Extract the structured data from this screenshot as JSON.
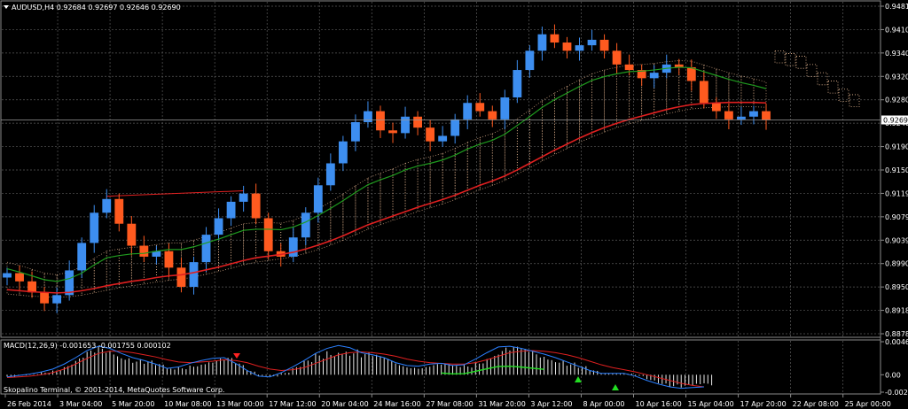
{
  "main_chart": {
    "symbol_line": "AUDUSD,H4  0.92684 0.92697 0.92646 0.92690",
    "price_axis_labels": [
      "0.94810",
      "0.94100",
      "0.93400",
      "0.93200",
      "0.92800",
      "0.92400",
      "0.91900",
      "0.91500",
      "0.91190",
      "0.90790",
      "0.90390",
      "0.89900",
      "0.89500",
      "0.89180",
      "0.88780"
    ],
    "current_price_tag": "0.92690",
    "time_axis_labels": [
      "26 Feb 2014",
      "3 Mar 04:00",
      "5 Mar 20:00",
      "10 Mar 08:00",
      "13 Mar 00:00",
      "17 Mar 12:00",
      "20 Mar 04:00",
      "24 Mar 16:00",
      "27 Mar 08:00",
      "31 Mar 20:00",
      "3 Apr 12:00",
      "8 Apr 00:00",
      "10 Apr 16:00",
      "15 Apr 04:00",
      "17 Apr 20:00",
      "22 Apr 08:00",
      "25 Apr 00:00"
    ],
    "colors": {
      "background": "#000000",
      "grid": "#5a5a5a",
      "bull_candle": "#3d8ef0",
      "bear_candle": "#ff5a1f",
      "ma_fast": "#1f9b1f",
      "ma_slow": "#e02020",
      "cloud": "#f4c29a",
      "trendline": "#e02020"
    }
  },
  "indicator": {
    "title": "MACD(12,26,9) -0.001653 -0.001755 0.000102",
    "axis_labels": [
      "0.004637",
      "0.00",
      "-0.002447"
    ],
    "copyright": "Skopalino Terminal, © 2001-2014, MetaQuotes Software Corp.",
    "colors": {
      "histogram": "#e8e8e8",
      "signal": "#e02020",
      "main": "#2a7fff",
      "arrow_up": "#22dd22",
      "arrow_down": "#ff2222"
    }
  },
  "chart_data": [
    {
      "type": "line",
      "title": "AUDUSD,H4",
      "x_start": "26 Feb 2014",
      "x_end": "25 Apr 00:00",
      "ylim": [
        0.8878,
        0.9481
      ],
      "last_price": 0.9269,
      "series": [
        {
          "values": [
            0.899,
            0.8975,
            0.8955,
            0.8935,
            0.895,
            0.8995,
            0.9045,
            0.91,
            0.9125,
            0.908,
            0.904,
            0.902,
            0.903,
            0.9,
            0.8965,
            0.901,
            0.906,
            0.909,
            0.912,
            0.9135,
            0.909,
            0.903,
            0.902,
            0.9055,
            0.91,
            0.915,
            0.919,
            0.923,
            0.9265,
            0.9285,
            0.925,
            0.9245,
            0.9275,
            0.9255,
            0.923,
            0.924,
            0.927,
            0.93,
            0.9285,
            0.927,
            0.931,
            0.936,
            0.9395,
            0.9425,
            0.941,
            0.9395,
            0.9405,
            0.9415,
            0.9395,
            0.937,
            0.936,
            0.9345,
            0.9355,
            0.937,
            0.9365,
            0.934,
            0.93,
            0.9285,
            0.927,
            0.9275,
            0.9285,
            0.9269
          ]
        },
        {
          "values": [
            0.8998,
            0.8992,
            0.8985,
            0.8978,
            0.8975,
            0.898,
            0.899,
            0.9005,
            0.9018,
            0.9022,
            0.9025,
            0.9026,
            0.903,
            0.9033,
            0.9033,
            0.9038,
            0.9045,
            0.9052,
            0.906,
            0.9068,
            0.907,
            0.907,
            0.9069,
            0.9074,
            0.9083,
            0.9095,
            0.9108,
            0.9122,
            0.9137,
            0.9151,
            0.916,
            0.9168,
            0.9178,
            0.9185,
            0.919,
            0.9196,
            0.9205,
            0.9216,
            0.9225,
            0.9232,
            0.9243,
            0.9259,
            0.9275,
            0.9292,
            0.9306,
            0.9318,
            0.933,
            0.9341,
            0.9348,
            0.9353,
            0.9357,
            0.9358,
            0.936,
            0.9363,
            0.9365,
            0.9364,
            0.9357,
            0.935,
            0.9343,
            0.9337,
            0.9332,
            0.9326
          ]
        },
        {
          "values": [
            0.896,
            0.8958,
            0.8956,
            0.8955,
            0.8954,
            0.8955,
            0.8958,
            0.8962,
            0.8967,
            0.8971,
            0.8975,
            0.8978,
            0.8982,
            0.8985,
            0.8987,
            0.8991,
            0.8996,
            0.9001,
            0.9007,
            0.9013,
            0.9018,
            0.9021,
            0.9024,
            0.9028,
            0.9034,
            0.9041,
            0.9049,
            0.9058,
            0.9068,
            0.9078,
            0.9086,
            0.9094,
            0.9102,
            0.911,
            0.9117,
            0.9124,
            0.9132,
            0.9141,
            0.915,
            0.9158,
            0.9167,
            0.9178,
            0.919,
            0.9202,
            0.9214,
            0.9225,
            0.9236,
            0.9246,
            0.9255,
            0.9263,
            0.927,
            0.9276,
            0.9282,
            0.9288,
            0.9293,
            0.9297,
            0.9299,
            0.93,
            0.9301,
            0.9301,
            0.9301,
            0.93
          ]
        }
      ]
    },
    {
      "type": "bar",
      "title": "MACD(12,26,9)",
      "ylim": [
        -0.002447,
        0.004637
      ],
      "series": [
        {
          "values": [
            -0.0003,
            -0.0001,
            0.0001,
            0.0004,
            0.0008,
            0.0015,
            0.0024,
            0.0034,
            0.004,
            0.0037,
            0.003,
            0.0024,
            0.002,
            0.0015,
            0.0009,
            0.0011,
            0.0016,
            0.002,
            0.0023,
            0.0024,
            0.0016,
            0.0006,
            -0.0002,
            -0.0003,
            0.0003,
            0.0011,
            0.002,
            0.003,
            0.0037,
            0.0041,
            0.0038,
            0.0031,
            0.0028,
            0.0024,
            0.0017,
            0.0013,
            0.0012,
            0.0015,
            0.0016,
            0.0013,
            0.0014,
            0.0022,
            0.0031,
            0.0039,
            0.004,
            0.0037,
            0.0033,
            0.0029,
            0.0024,
            0.0018,
            0.0012,
            0.0006,
            0.0002,
            0.0002,
            0.0002,
            -0.0002,
            -0.0008,
            -0.0013,
            -0.0017,
            -0.0019,
            -0.0018,
            -0.0017
          ]
        },
        {
          "values": [
            -0.0004,
            -0.0003,
            -0.0002,
            0.0,
            0.0003,
            0.0008,
            0.0015,
            0.0023,
            0.003,
            0.0033,
            0.0033,
            0.0031,
            0.0028,
            0.0025,
            0.0021,
            0.0018,
            0.0017,
            0.0018,
            0.0019,
            0.0021,
            0.002,
            0.0017,
            0.0012,
            0.0008,
            0.0006,
            0.0007,
            0.001,
            0.0016,
            0.0022,
            0.0028,
            0.0031,
            0.0032,
            0.0031,
            0.0029,
            0.0026,
            0.0022,
            0.0019,
            0.0017,
            0.0016,
            0.0015,
            0.0015,
            0.0017,
            0.0021,
            0.0026,
            0.0031,
            0.0033,
            0.0034,
            0.0033,
            0.0031,
            0.0028,
            0.0024,
            0.0019,
            0.0014,
            0.001,
            0.0007,
            0.0004,
            0.0,
            -0.0004,
            -0.0008,
            -0.0012,
            -0.0015,
            -0.0017
          ]
        }
      ]
    }
  ]
}
